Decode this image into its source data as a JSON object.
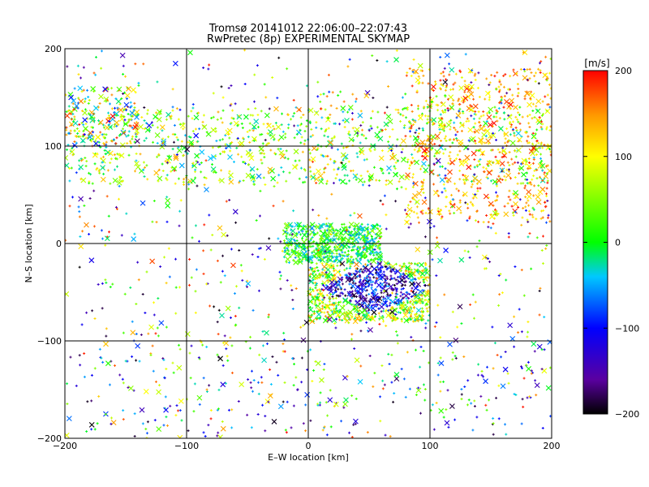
{
  "chart_data": {
    "type": "scatter",
    "title": "Tromsø 20141012 22:06:00–22:07:43",
    "subtitle": "RwPretec (8p) EXPERIMENTAL SKYMAP",
    "xlabel": "E–W location [km]",
    "ylabel": "N–S location [km]",
    "xlim": [
      -200,
      200
    ],
    "ylim": [
      -200,
      200
    ],
    "xticks": [
      -200,
      -100,
      0,
      100,
      200
    ],
    "yticks": [
      -200,
      -100,
      0,
      100,
      200
    ],
    "grid": true,
    "colorbar": {
      "label": "[m/s]",
      "range": [
        -200,
        200
      ],
      "ticks": [
        200,
        100,
        0,
        -100,
        -200
      ],
      "colormap": "rainbow (black→purple→blue→cyan→green→yellow→orange→red)"
    },
    "markers": [
      "x (large)",
      "+ (small)"
    ],
    "clusters": [
      {
        "name": "northern band",
        "x": [
          -200,
          200
        ],
        "y": [
          60,
          140
        ],
        "velocity_range": [
          -50,
          150
        ]
      },
      {
        "name": "central patch",
        "x": [
          -20,
          60
        ],
        "y": [
          -20,
          20
        ],
        "velocity_range": [
          -60,
          60
        ]
      },
      {
        "name": "southeast dense patch",
        "x": [
          0,
          100
        ],
        "y": [
          -80,
          -20
        ],
        "velocity_range": [
          -200,
          150
        ]
      },
      {
        "name": "northwest cluster",
        "x": [
          -200,
          -140
        ],
        "y": [
          100,
          160
        ],
        "velocity_range": [
          -100,
          200
        ]
      },
      {
        "name": "northeast sparse region",
        "x": [
          80,
          200
        ],
        "y": [
          20,
          180
        ],
        "velocity_range": [
          80,
          200
        ]
      },
      {
        "name": "southern sparse",
        "x": [
          -200,
          200
        ],
        "y": [
          -200,
          -100
        ],
        "velocity_range": [
          -200,
          100
        ]
      }
    ]
  }
}
